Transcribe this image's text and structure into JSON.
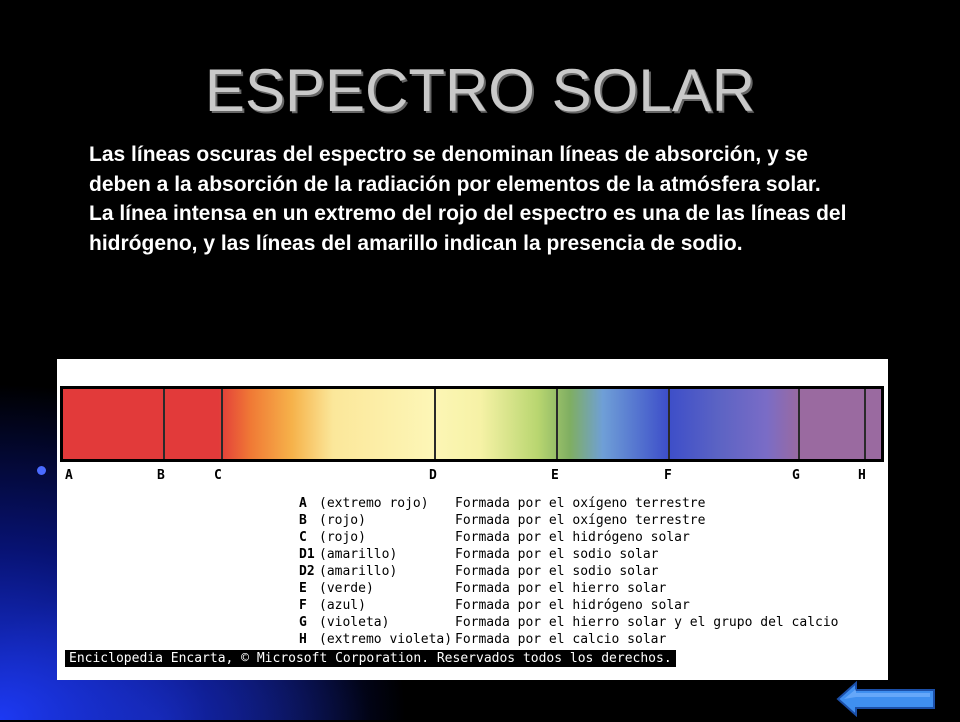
{
  "slide": {
    "title": "ESPECTRO SOLAR",
    "paragraph": "Las líneas oscuras del espectro se denominan líneas de absorción, y se deben a la absorción de la radiación por elementos de la atmósfera solar. La línea intensa en un extremo del rojo del espectro es una de las líneas del hidrógeno, y las líneas del amarillo indican la presencia de sodio."
  },
  "figure": {
    "spectrum_letters": [
      "A",
      "B",
      "C",
      "D",
      "E",
      "F",
      "G",
      "H"
    ],
    "legend": [
      {
        "code": "A",
        "name": "(extremo rojo)",
        "desc": "Formada por el oxígeno terrestre"
      },
      {
        "code": "B",
        "name": "(rojo)",
        "desc": "Formada por el oxígeno terrestre"
      },
      {
        "code": "C",
        "name": "(rojo)",
        "desc": "Formada por el hidrógeno solar"
      },
      {
        "code": "D1",
        "name": "(amarillo)",
        "desc": "Formada por el sodio solar"
      },
      {
        "code": "D2",
        "name": "(amarillo)",
        "desc": "Formada por el sodio solar"
      },
      {
        "code": "E",
        "name": "(verde)",
        "desc": "Formada por el hierro solar"
      },
      {
        "code": "F",
        "name": "(azul)",
        "desc": "Formada por el hidrógeno solar"
      },
      {
        "code": "G",
        "name": "(violeta)",
        "desc": "Formada por el hierro solar y el grupo del calcio"
      },
      {
        "code": "H",
        "name": "(extremo violeta)",
        "desc": "Formada por el calcio solar"
      }
    ],
    "credit": "Enciclopedia Encarta, © Microsoft Corporation. Reservados todos los derechos."
  },
  "navigation": {
    "back_icon": "left-arrow-icon",
    "arrow_color": "#3f8ff0"
  }
}
